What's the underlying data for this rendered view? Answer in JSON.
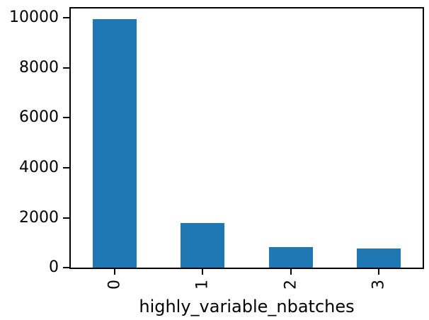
{
  "chart_data": {
    "type": "bar",
    "title": "",
    "xlabel": "highly_variable_nbatches",
    "ylabel": "",
    "categories": [
      "0",
      "1",
      "2",
      "3"
    ],
    "values": [
      9950,
      1800,
      815,
      780
    ],
    "yticks": [
      0,
      2000,
      4000,
      6000,
      8000,
      10000
    ],
    "ylim": [
      0,
      10380
    ],
    "xtick_rotation_deg": 90,
    "grid": false,
    "legend": null,
    "bar_color": "#1f77b4",
    "axis_color": "#000000",
    "text_color": "#000000",
    "background_color": "#ffffff"
  }
}
